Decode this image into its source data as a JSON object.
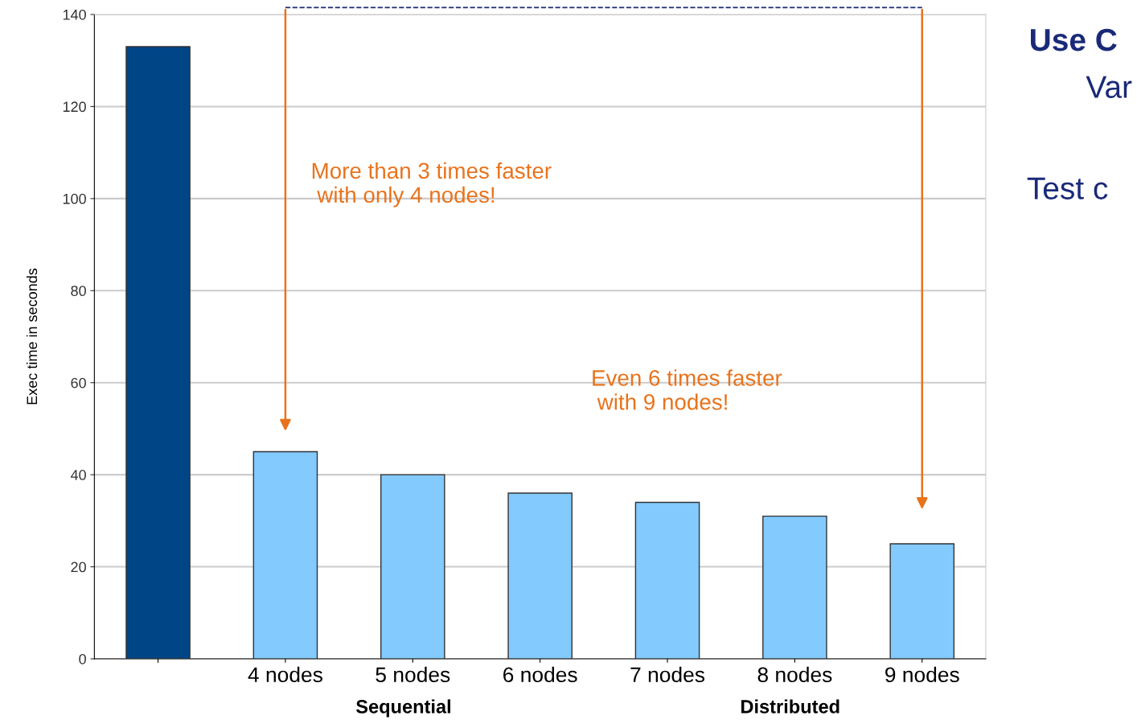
{
  "chart_data": {
    "type": "bar",
    "ylabel": "Exec time in seconds",
    "categories": [
      null,
      "4 nodes",
      "5 nodes",
      "6 nodes",
      "7 nodes",
      "8 nodes",
      "9 nodes"
    ],
    "values": [
      133,
      45,
      40,
      36,
      34,
      31,
      25
    ],
    "colors": [
      "#004586",
      "#83caff",
      "#83caff",
      "#83caff",
      "#83caff",
      "#83caff",
      "#83caff"
    ],
    "ylim": [
      0,
      140
    ],
    "yticks": [
      0,
      20,
      40,
      60,
      80,
      100,
      120,
      140
    ],
    "grid": "y",
    "annotations": [
      "More than 3 times faster\n with only 4 nodes!",
      "Even 6 times faster\n with 9 nodes!",
      "Sequential",
      "Distributed",
      "Use C",
      "Var",
      "Test c"
    ]
  }
}
